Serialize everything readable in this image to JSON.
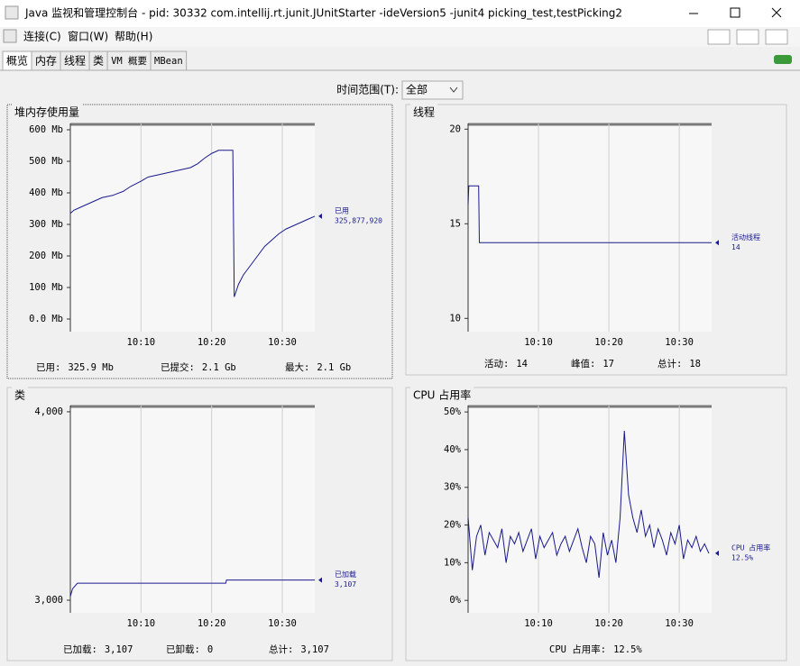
{
  "window": {
    "title": "Java 监视和管理控制台 - pid: 30332 com.intellij.rt.junit.JUnitStarter -ideVersion5 -junit4 picking_test,testPicking2"
  },
  "menu": [
    "连接(C)",
    "窗口(W)",
    "帮助(H)"
  ],
  "tabs": [
    "概览",
    "内存",
    "线程",
    "类",
    "VM 概要",
    "MBean"
  ],
  "time_range": {
    "label": "时间范围(T):",
    "selected": "全部"
  },
  "chart_data": [
    {
      "type": "line",
      "title": "堆内存使用量",
      "xlim": [
        600,
        634.6
      ],
      "xticks": [
        {
          "value": 610,
          "label": "10:10"
        },
        {
          "value": 620,
          "label": "10:20"
        },
        {
          "value": 630,
          "label": "10:30"
        }
      ],
      "ylim": [
        -40,
        620
      ],
      "yticks": [
        {
          "value": 0,
          "label": "0.0 Mb"
        },
        {
          "value": 100,
          "label": "100 Mb"
        },
        {
          "value": 200,
          "label": "200 Mb"
        },
        {
          "value": 300,
          "label": "300 Mb"
        },
        {
          "value": 400,
          "label": "400 Mb"
        },
        {
          "value": 500,
          "label": "500 Mb"
        },
        {
          "value": 600,
          "label": "600 Mb"
        }
      ],
      "x": [
        600,
        600.5,
        601.5,
        602.5,
        603.5,
        604.5,
        606,
        607.5,
        608.5,
        610,
        611,
        613,
        615,
        617,
        618,
        619,
        620,
        621,
        623,
        623.2,
        623.8,
        624.5,
        625.5,
        626.5,
        627.5,
        628.5,
        629.5,
        630.5,
        632,
        633.5,
        634.6
      ],
      "series": [
        {
          "name": "已用",
          "color": "#1a1a8c",
          "current": "325,877,920",
          "values": [
            335,
            345,
            355,
            365,
            375,
            385,
            392,
            405,
            420,
            437,
            450,
            460,
            470,
            480,
            492,
            510,
            525,
            535,
            535,
            70,
            110,
            140,
            170,
            200,
            230,
            250,
            270,
            285,
            300,
            315,
            326
          ]
        }
      ],
      "footer": [
        {
          "label": "已用:",
          "value": "325.9 Mb"
        },
        {
          "label": "已提交:",
          "value": "2.1 Gb"
        },
        {
          "label": "最大:",
          "value": "2.1 Gb"
        }
      ]
    },
    {
      "type": "line",
      "title": "线程",
      "xlim": [
        600,
        634.6
      ],
      "xticks": [
        {
          "value": 610,
          "label": "10:10"
        },
        {
          "value": 620,
          "label": "10:20"
        },
        {
          "value": 630,
          "label": "10:30"
        }
      ],
      "ylim": [
        9.3,
        20.3
      ],
      "yticks": [
        10,
        15,
        20
      ],
      "x": [
        600,
        600.1,
        601.5,
        601.6,
        634.6
      ],
      "series": [
        {
          "name": "活动线程",
          "color": "#1a1a8c",
          "current": "14",
          "values": [
            16,
            17,
            17,
            14,
            14
          ]
        }
      ],
      "footer": [
        {
          "label": "活动:",
          "value": "14"
        },
        {
          "label": "峰值:",
          "value": "17"
        },
        {
          "label": "总计:",
          "value": "18"
        }
      ]
    },
    {
      "type": "line",
      "title": "类",
      "xlim": [
        600,
        634.6
      ],
      "xticks": [
        {
          "value": 610,
          "label": "10:10"
        },
        {
          "value": 620,
          "label": "10:20"
        },
        {
          "value": 630,
          "label": "10:30"
        }
      ],
      "ylim": [
        2933,
        4033
      ],
      "yticks": [
        {
          "value": 3000,
          "label": "3,000"
        },
        {
          "value": 4000,
          "label": "4,000"
        }
      ],
      "x": [
        600,
        600.3,
        601,
        622,
        622.1,
        634.6
      ],
      "series": [
        {
          "name": "已加载",
          "color": "#1a1a8c",
          "current": "3,107",
          "values": [
            3020,
            3060,
            3090,
            3090,
            3107,
            3107
          ]
        }
      ],
      "footer": [
        {
          "label": "已加载:",
          "value": "3,107"
        },
        {
          "label": "已卸载:",
          "value": "0"
        },
        {
          "label": "总计:",
          "value": "3,107"
        }
      ]
    },
    {
      "type": "line",
      "title": "CPU 占用率",
      "xlim": [
        600,
        634.6
      ],
      "xticks": [
        {
          "value": 610,
          "label": "10:10"
        },
        {
          "value": 620,
          "label": "10:20"
        },
        {
          "value": 630,
          "label": "10:30"
        }
      ],
      "ylim": [
        -3.3,
        51.7
      ],
      "yticks": [
        {
          "value": 0,
          "label": "0%"
        },
        {
          "value": 10,
          "label": "10%"
        },
        {
          "value": 20,
          "label": "20%"
        },
        {
          "value": 30,
          "label": "30%"
        },
        {
          "value": 40,
          "label": "40%"
        },
        {
          "value": 50,
          "label": "50%"
        }
      ],
      "x": [
        600,
        600.6,
        601.2,
        601.8,
        602.4,
        603,
        603.6,
        604.2,
        604.8,
        605.4,
        606,
        606.6,
        607.2,
        607.8,
        608.4,
        609,
        609.6,
        610.2,
        610.8,
        611.4,
        612,
        612.6,
        613.2,
        613.8,
        614.4,
        615,
        615.6,
        616.2,
        616.8,
        617.4,
        618,
        618.6,
        619.2,
        619.8,
        620.4,
        621,
        621.6,
        622.2,
        622.8,
        623.4,
        624,
        624.6,
        625.2,
        625.8,
        626.4,
        627,
        627.6,
        628.2,
        628.8,
        629.4,
        630,
        630.6,
        631.2,
        631.8,
        632.4,
        633,
        633.6,
        634.2
      ],
      "series": [
        {
          "name": "CPU 占用率",
          "color": "#1a1a8c",
          "current": "12.5%",
          "values": [
            22,
            8,
            17,
            20,
            12,
            18,
            16,
            14,
            19,
            10,
            17,
            15,
            18,
            13,
            16,
            19,
            11,
            17,
            14,
            16,
            18,
            12,
            15,
            17,
            13,
            16,
            19,
            14,
            10,
            17,
            15,
            6,
            18,
            12,
            16,
            10,
            22,
            45,
            28,
            22,
            18,
            24,
            17,
            20,
            14,
            19,
            16,
            12,
            18,
            15,
            20,
            11,
            16,
            14,
            17,
            13,
            15,
            12.5
          ]
        }
      ],
      "footer": [
        {
          "label": "CPU 占用率:",
          "value": "12.5%"
        }
      ]
    }
  ]
}
